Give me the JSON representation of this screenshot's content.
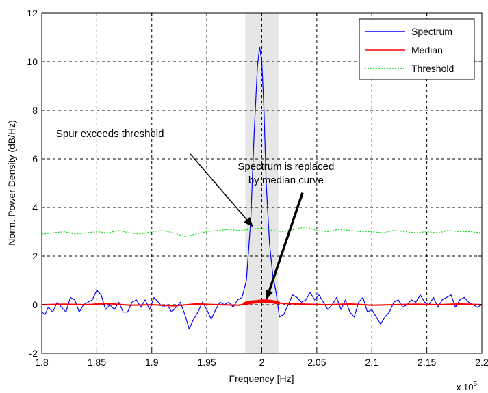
{
  "chart_data": {
    "type": "line",
    "xlabel": "Frequency [Hz]",
    "ylabel": "Norm. Power Density (dB/Hz)",
    "x_exponent_label": "x 10",
    "x_exponent_power": "5",
    "xlim": [
      1.8,
      2.2
    ],
    "ylim": [
      -2,
      12
    ],
    "x_ticks": [
      1.8,
      1.85,
      1.9,
      1.95,
      2.0,
      2.05,
      2.1,
      2.15,
      2.2
    ],
    "x_tick_labels": [
      "1.8",
      "1.85",
      "1.9",
      "1.95",
      "2",
      "2.05",
      "2.1",
      "2.15",
      "2.2"
    ],
    "y_ticks": [
      -2,
      0,
      2,
      4,
      6,
      8,
      10,
      12
    ],
    "y_tick_labels": [
      "-2",
      "0",
      "2",
      "4",
      "6",
      "8",
      "10",
      "12"
    ],
    "grid": true,
    "grid_style": "dashed",
    "legend_position": "top-right",
    "highlight_band": [
      1.985,
      2.015
    ],
    "highlight_color": "#e6e6e6",
    "series": [
      {
        "name": "Spectrum",
        "color": "#0000ff",
        "style": "solid",
        "x": [
          1.8,
          1.803,
          1.806,
          1.81,
          1.814,
          1.818,
          1.822,
          1.826,
          1.83,
          1.834,
          1.838,
          1.842,
          1.846,
          1.85,
          1.854,
          1.858,
          1.862,
          1.866,
          1.87,
          1.874,
          1.878,
          1.882,
          1.886,
          1.89,
          1.894,
          1.898,
          1.902,
          1.906,
          1.91,
          1.914,
          1.918,
          1.922,
          1.926,
          1.93,
          1.934,
          1.938,
          1.942,
          1.946,
          1.95,
          1.954,
          1.958,
          1.962,
          1.966,
          1.97,
          1.974,
          1.978,
          1.982,
          1.986,
          1.99,
          1.993,
          1.996,
          1.998,
          2.0,
          2.002,
          2.004,
          2.007,
          2.01,
          2.013,
          2.016,
          2.02,
          2.024,
          2.028,
          2.032,
          2.036,
          2.04,
          2.044,
          2.048,
          2.052,
          2.056,
          2.06,
          2.064,
          2.068,
          2.072,
          2.076,
          2.08,
          2.084,
          2.088,
          2.092,
          2.096,
          2.1,
          2.104,
          2.108,
          2.112,
          2.116,
          2.12,
          2.124,
          2.128,
          2.132,
          2.136,
          2.14,
          2.144,
          2.148,
          2.152,
          2.156,
          2.16,
          2.164,
          2.168,
          2.172,
          2.176,
          2.18,
          2.184,
          2.188,
          2.192,
          2.196,
          2.2
        ],
        "y": [
          -0.3,
          -0.4,
          -0.1,
          -0.3,
          0.1,
          -0.1,
          -0.3,
          0.3,
          0.2,
          -0.3,
          0.0,
          0.1,
          0.2,
          0.6,
          0.4,
          -0.2,
          0.0,
          -0.2,
          0.1,
          -0.3,
          -0.3,
          0.1,
          0.2,
          -0.1,
          0.2,
          -0.2,
          0.3,
          0.1,
          -0.1,
          0.0,
          -0.3,
          -0.1,
          0.1,
          -0.4,
          -1.0,
          -0.6,
          -0.3,
          0.1,
          -0.2,
          -0.6,
          -0.2,
          0.1,
          0.0,
          0.1,
          -0.1,
          0.2,
          0.3,
          1.0,
          3.5,
          7.0,
          9.8,
          10.6,
          10.0,
          8.0,
          5.0,
          2.5,
          1.2,
          0.5,
          -0.5,
          -0.4,
          0.0,
          0.4,
          0.3,
          0.1,
          0.2,
          0.5,
          0.2,
          0.4,
          0.1,
          -0.2,
          0.0,
          0.3,
          -0.2,
          0.2,
          -0.3,
          -0.5,
          0.1,
          0.3,
          -0.3,
          -0.2,
          -0.5,
          -0.8,
          -0.5,
          -0.3,
          0.1,
          0.2,
          -0.1,
          0.0,
          0.2,
          0.1,
          0.4,
          0.1,
          0.0,
          0.3,
          -0.1,
          0.2,
          0.3,
          0.4,
          -0.1,
          0.2,
          0.3,
          0.1,
          0.0,
          -0.1,
          0.0
        ]
      },
      {
        "name": "Median",
        "color": "#ff0000",
        "style": "solid",
        "x": [
          1.8,
          1.82,
          1.84,
          1.86,
          1.88,
          1.9,
          1.92,
          1.94,
          1.96,
          1.98,
          1.985,
          1.99,
          1.995,
          2.0,
          2.005,
          2.01,
          2.015,
          2.02,
          2.04,
          2.06,
          2.08,
          2.1,
          2.12,
          2.14,
          2.16,
          2.18,
          2.2
        ],
        "y": [
          0.0,
          0.02,
          0.0,
          0.05,
          -0.02,
          0.0,
          -0.05,
          0.03,
          0.0,
          -0.02,
          0.05,
          0.1,
          0.12,
          0.15,
          0.15,
          0.12,
          0.08,
          0.05,
          0.02,
          0.0,
          0.03,
          -0.02,
          0.0,
          0.02,
          0.0,
          0.03,
          0.0
        ]
      },
      {
        "name": "Threshold",
        "color": "#00dd00",
        "style": "dotted",
        "x": [
          1.8,
          1.81,
          1.82,
          1.83,
          1.84,
          1.85,
          1.86,
          1.87,
          1.88,
          1.89,
          1.9,
          1.91,
          1.92,
          1.93,
          1.94,
          1.95,
          1.96,
          1.97,
          1.98,
          1.99,
          2.0,
          2.01,
          2.02,
          2.03,
          2.04,
          2.05,
          2.06,
          2.07,
          2.08,
          2.09,
          2.1,
          2.11,
          2.12,
          2.13,
          2.14,
          2.15,
          2.16,
          2.17,
          2.18,
          2.19,
          2.2
        ],
        "y": [
          2.9,
          2.95,
          3.0,
          2.9,
          2.95,
          3.0,
          2.95,
          3.05,
          2.95,
          2.9,
          3.0,
          3.05,
          2.95,
          2.8,
          2.9,
          3.0,
          3.05,
          3.1,
          3.05,
          3.1,
          3.15,
          3.05,
          3.0,
          3.1,
          3.2,
          3.05,
          3.0,
          3.1,
          3.05,
          3.0,
          3.0,
          2.95,
          3.05,
          3.0,
          2.95,
          3.0,
          2.95,
          3.05,
          3.0,
          3.0,
          2.95
        ]
      }
    ],
    "annotations": [
      {
        "lines": [
          "Spur exceeds threshold"
        ],
        "text_x": 1.813,
        "text_y": 6.9,
        "anchor": "start",
        "arrow_from": [
          1.935,
          6.2
        ],
        "arrow_to": [
          1.992,
          3.2
        ],
        "arrow_width": 1.5
      },
      {
        "lines": [
          "Spectrum is replaced",
          "by median curve"
        ],
        "text_x": 2.022,
        "text_y": 5.55,
        "anchor": "middle",
        "arrow_from": [
          2.037,
          4.6
        ],
        "arrow_to": [
          2.004,
          0.2
        ],
        "arrow_width": 3.5
      }
    ]
  }
}
